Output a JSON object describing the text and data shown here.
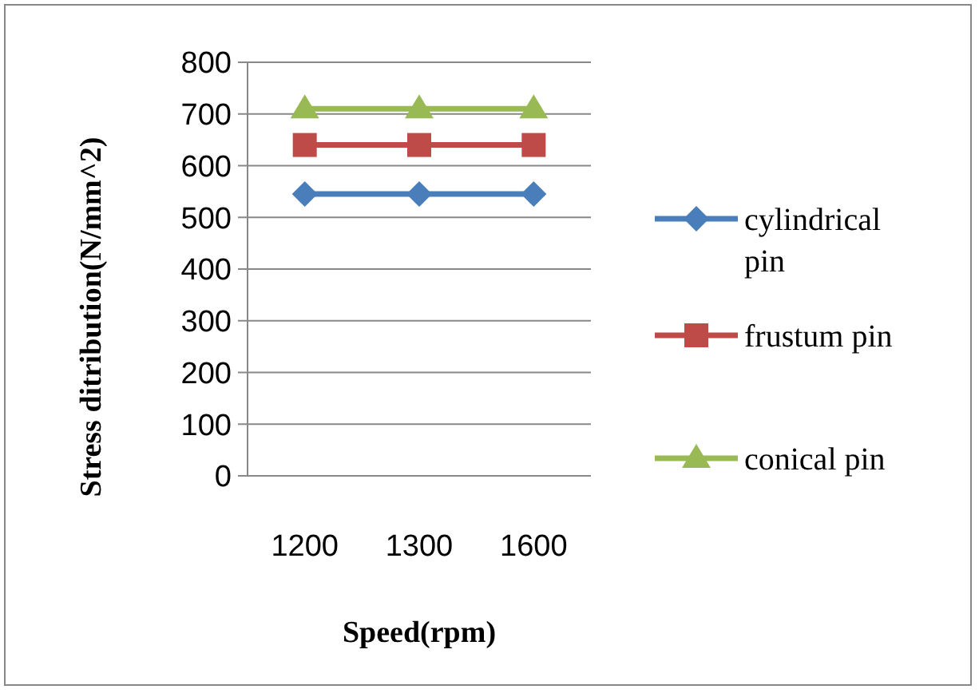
{
  "chart_data": {
    "type": "line",
    "xlabel": "Speed(rpm)",
    "ylabel": "Stress ditribution(N/mm^2)",
    "categories": [
      "1200",
      "1300",
      "1600"
    ],
    "series": [
      {
        "name": "cylindrical pin",
        "color": "#4a7ebb",
        "marker": "diamond",
        "values": [
          545,
          545,
          545
        ]
      },
      {
        "name": "frustum pin",
        "color": "#be4b48",
        "marker": "square",
        "values": [
          640,
          640,
          640
        ]
      },
      {
        "name": "conical pin",
        "color": "#98b954",
        "marker": "triangle",
        "values": [
          710,
          710,
          710
        ]
      }
    ],
    "ylim": [
      0,
      800
    ],
    "yticks": [
      0,
      100,
      200,
      300,
      400,
      500,
      600,
      700,
      800
    ],
    "grid": "y",
    "legend": "right"
  }
}
